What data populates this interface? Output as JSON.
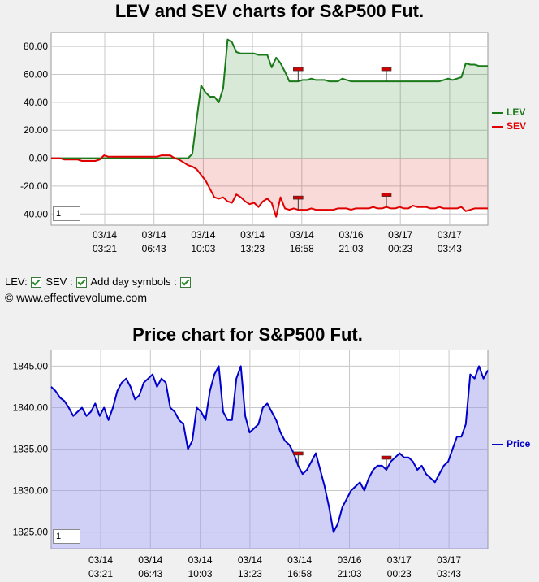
{
  "lev_chart": {
    "title": "LEV and SEV charts for S&P500 Fut.",
    "zoom_value": "1",
    "legend": [
      {
        "name": "LEV",
        "color": "#1a7a1a"
      },
      {
        "name": "SEV",
        "color": "#e00000"
      }
    ]
  },
  "price_chart": {
    "title": "Price chart for S&P500 Fut.",
    "zoom_value": "1",
    "legend": [
      {
        "name": "Price",
        "color": "#0000cc"
      }
    ]
  },
  "controls": {
    "lev_label": "LEV:",
    "sev_label": "SEV :",
    "day_symbols_label": "Add day symbols :"
  },
  "copyright": "© www.effectivevolume.com",
  "chart_data": [
    {
      "type": "line",
      "title": "LEV and SEV charts for S&P500 Fut.",
      "x_tick_labels": [
        [
          "03/14",
          "03:21"
        ],
        [
          "03/14",
          "06:43"
        ],
        [
          "03/14",
          "10:03"
        ],
        [
          "03/14",
          "13:23"
        ],
        [
          "03/14",
          "16:58"
        ],
        [
          "03/16",
          "21:03"
        ],
        [
          "03/17",
          "00:23"
        ],
        [
          "03/17",
          "03:43"
        ]
      ],
      "y_tick_labels": [
        "80.00",
        "60.00",
        "40.00",
        "20.00",
        "0.00",
        "-20.00",
        "-40.00"
      ],
      "ylim": [
        -48,
        90
      ],
      "x_count": 100,
      "fill": "area",
      "series": [
        {
          "name": "LEV",
          "color": "#1a7a1a",
          "fill": "rgba(26,122,26,0.17)",
          "values": [
            0,
            0,
            0,
            0,
            0,
            0,
            0,
            0,
            0,
            0,
            0,
            0,
            0,
            0,
            0,
            0,
            0,
            0,
            0,
            0,
            0,
            0,
            0,
            0,
            0,
            0,
            0,
            0,
            0,
            0,
            0,
            0,
            3,
            28,
            52,
            47,
            44,
            44,
            40,
            50,
            85,
            83,
            76,
            75,
            75,
            75,
            75,
            74,
            74,
            74,
            65,
            72,
            68,
            62,
            55,
            55,
            55,
            56,
            56,
            57,
            56,
            56,
            56,
            55,
            55,
            55,
            57,
            56,
            55,
            55,
            55,
            55,
            55,
            55,
            55,
            55,
            55,
            55,
            55,
            55,
            55,
            55,
            55,
            55,
            55,
            55,
            55,
            55,
            55,
            56,
            57,
            56,
            57,
            58,
            68,
            67,
            67,
            66,
            66,
            66
          ]
        },
        {
          "name": "SEV",
          "color": "#e00000",
          "fill": "rgba(224,0,0,0.15)",
          "values": [
            0,
            0,
            0,
            -1,
            -1,
            -1,
            -1,
            -2,
            -2,
            -2,
            -2,
            -1,
            2,
            1,
            1,
            1,
            1,
            1,
            1,
            1,
            1,
            1,
            1,
            1,
            1,
            2,
            2,
            2,
            0,
            -1,
            -3,
            -5,
            -6,
            -8,
            -12,
            -16,
            -22,
            -28,
            -29,
            -28,
            -31,
            -32,
            -26,
            -28,
            -31,
            -33,
            -32,
            -35,
            -31,
            -29,
            -32,
            -42,
            -28,
            -36,
            -37,
            -36,
            -37,
            -37,
            -37,
            -36,
            -37,
            -37,
            -37,
            -37,
            -37,
            -36,
            -36,
            -36,
            -37,
            -36,
            -36,
            -36,
            -36,
            -35,
            -36,
            -36,
            -35,
            -36,
            -36,
            -35,
            -36,
            -36,
            -34,
            -35,
            -35,
            -35,
            -36,
            -36,
            -35,
            -36,
            -36,
            -36,
            -36,
            -35,
            -38,
            -37,
            -36,
            -36,
            -36,
            -36
          ]
        }
      ],
      "markers": [
        {
          "series": "LEV",
          "index": 56
        },
        {
          "series": "LEV",
          "index": 76
        },
        {
          "series": "SEV",
          "index": 56
        },
        {
          "series": "SEV",
          "index": 76
        }
      ]
    },
    {
      "type": "area",
      "title": "Price chart for S&P500 Fut.",
      "x_tick_labels": [
        [
          "03/14",
          "03:21"
        ],
        [
          "03/14",
          "06:43"
        ],
        [
          "03/14",
          "10:03"
        ],
        [
          "03/14",
          "13:23"
        ],
        [
          "03/14",
          "16:58"
        ],
        [
          "03/16",
          "21:03"
        ],
        [
          "03/17",
          "00:23"
        ],
        [
          "03/17",
          "03:43"
        ]
      ],
      "y_tick_labels": [
        "1845.00",
        "1840.00",
        "1835.00",
        "1830.00",
        "1825.00"
      ],
      "ylim": [
        1823,
        1847
      ],
      "x_count": 100,
      "series": [
        {
          "name": "Price",
          "color": "#0000cc",
          "fill": "rgba(150,150,235,0.45)",
          "values": [
            1842.5,
            1842,
            1841.2,
            1840.8,
            1840,
            1839,
            1839.5,
            1840,
            1839,
            1839.5,
            1840.5,
            1839,
            1840,
            1838.5,
            1840,
            1842,
            1843,
            1843.5,
            1842.5,
            1841,
            1841.5,
            1843,
            1843.5,
            1844,
            1842.5,
            1843.5,
            1843,
            1840,
            1839.5,
            1838.5,
            1838,
            1835,
            1836,
            1840,
            1839.5,
            1838.5,
            1842,
            1844,
            1845,
            1839.5,
            1838.5,
            1838.5,
            1843.5,
            1845,
            1839,
            1837,
            1837.5,
            1838,
            1840,
            1840.5,
            1839.5,
            1838.5,
            1837,
            1836,
            1835.5,
            1834.5,
            1833,
            1832,
            1832.5,
            1833.5,
            1834.5,
            1832.5,
            1830.5,
            1828,
            1825,
            1826,
            1828,
            1829,
            1830,
            1830.5,
            1831,
            1830,
            1831.5,
            1832.5,
            1833,
            1833,
            1832.5,
            1833.5,
            1834,
            1834.5,
            1834,
            1834,
            1833.5,
            1832.5,
            1833,
            1832,
            1831.5,
            1831,
            1832,
            1833,
            1833.5,
            1835,
            1836.5,
            1836.5,
            1838,
            1844,
            1843.5,
            1845,
            1843.5,
            1844.5
          ]
        }
      ],
      "markers": [
        {
          "series": "Price",
          "index": 56
        },
        {
          "series": "Price",
          "index": 76
        }
      ]
    }
  ]
}
